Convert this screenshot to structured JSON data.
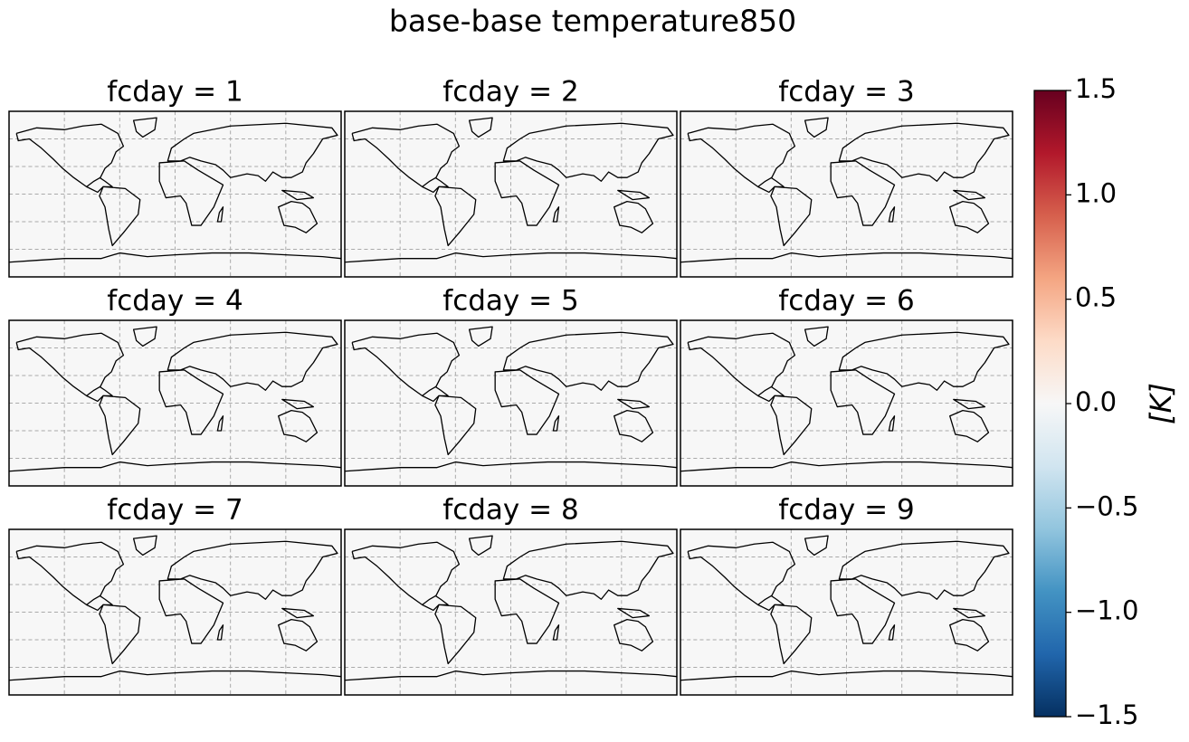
{
  "chart_data": {
    "type": "map_grid",
    "title": "base-base temperature850",
    "panels": [
      {
        "title": "fcday = 1",
        "value": 0
      },
      {
        "title": "fcday = 2",
        "value": 0
      },
      {
        "title": "fcday = 3",
        "value": 0
      },
      {
        "title": "fcday = 4",
        "value": 0
      },
      {
        "title": "fcday = 5",
        "value": 0
      },
      {
        "title": "fcday = 6",
        "value": 0
      },
      {
        "title": "fcday = 7",
        "value": 0
      },
      {
        "title": "fcday = 8",
        "value": 0
      },
      {
        "title": "fcday = 9",
        "value": 0
      }
    ],
    "colormap": "RdBu_r",
    "colorbar_label": "[K]",
    "clim": [
      -1.5,
      1.5
    ],
    "cticks": [
      {
        "value": -1.5,
        "label": "−1.5"
      },
      {
        "value": -1.0,
        "label": "−1.0"
      },
      {
        "value": -0.5,
        "label": "−0.5"
      },
      {
        "value": 0,
        "label": "0.0"
      },
      0.5,
      {
        "value": 1.0,
        "label": "1.0"
      },
      1.5
    ],
    "grid": true
  }
}
